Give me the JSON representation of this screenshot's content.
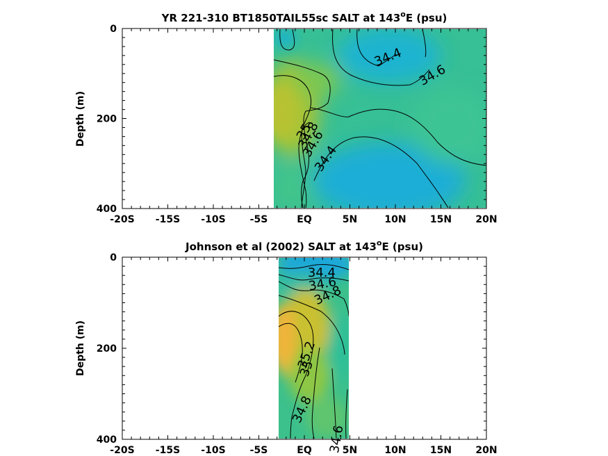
{
  "chart_data": [
    {
      "type": "heatmap",
      "title": "YR 221-310 BT1850TAIL55sc SALT at 143",
      "title_sup": "o",
      "title_suffix": "E (psu)",
      "ylabel": "Depth (m)",
      "xlabel": "",
      "xlim": [
        -20,
        20
      ],
      "ylim": [
        0,
        400
      ],
      "y_reversed": true,
      "x_ticks": [
        {
          "v": -20,
          "label": "-20S"
        },
        {
          "v": -15,
          "label": "-15S"
        },
        {
          "v": -10,
          "label": "-10S"
        },
        {
          "v": -5,
          "label": "-5S"
        },
        {
          "v": 0,
          "label": "EQ"
        },
        {
          "v": 5,
          "label": "5N"
        },
        {
          "v": 10,
          "label": "10N"
        },
        {
          "v": 15,
          "label": "15N"
        },
        {
          "v": 20,
          "label": "20N"
        }
      ],
      "y_ticks": [
        {
          "v": 0,
          "label": "0"
        },
        {
          "v": 200,
          "label": "200"
        },
        {
          "v": 400,
          "label": "400"
        }
      ],
      "data_extent": {
        "lat": [
          -3.3,
          20
        ],
        "depth": [
          0,
          400
        ]
      },
      "contour_labels": [
        {
          "text": "34.4",
          "lat": 9.2,
          "depth": 65,
          "angle": -22
        },
        {
          "text": "34.6",
          "lat": 14.1,
          "depth": 105,
          "angle": -30
        },
        {
          "text": "35",
          "lat": 0.0,
          "depth": 230,
          "angle": -60
        },
        {
          "text": "34.8",
          "lat": 0.5,
          "depth": 238,
          "angle": -62
        },
        {
          "text": "34.6",
          "lat": 1.0,
          "depth": 257,
          "angle": -60
        },
        {
          "text": "34.4",
          "lat": 2.4,
          "depth": 290,
          "angle": -55
        }
      ]
    },
    {
      "type": "heatmap",
      "title": "Johnson et al (2002) SALT at 143",
      "title_sup": "o",
      "title_suffix": "E (psu)",
      "ylabel": "Depth (m)",
      "xlabel": "",
      "xlim": [
        -20,
        20
      ],
      "ylim": [
        0,
        400
      ],
      "y_reversed": true,
      "x_ticks": [
        {
          "v": -20,
          "label": "-20S"
        },
        {
          "v": -15,
          "label": "-15S"
        },
        {
          "v": -10,
          "label": "-10S"
        },
        {
          "v": -5,
          "label": "-5S"
        },
        {
          "v": 0,
          "label": "EQ"
        },
        {
          "v": 5,
          "label": "5N"
        },
        {
          "v": 10,
          "label": "10N"
        },
        {
          "v": 15,
          "label": "15N"
        },
        {
          "v": 20,
          "label": "20N"
        }
      ],
      "y_ticks": [
        {
          "v": 0,
          "label": "0"
        },
        {
          "v": 200,
          "label": "200"
        },
        {
          "v": 400,
          "label": "400"
        }
      ],
      "data_extent": {
        "lat": [
          -2.8,
          5
        ],
        "depth": [
          0,
          400
        ]
      },
      "contour_labels": [
        {
          "text": "34.4",
          "lat": 1.9,
          "depth": 35,
          "angle": 0
        },
        {
          "text": "34.6",
          "lat": 2.0,
          "depth": 60,
          "angle": -10
        },
        {
          "text": "34.8",
          "lat": 2.6,
          "depth": 85,
          "angle": -25
        },
        {
          "text": "35.2",
          "lat": 0.3,
          "depth": 215,
          "angle": -70
        },
        {
          "text": "35",
          "lat": 0.3,
          "depth": 245,
          "angle": -70
        },
        {
          "text": "34.8",
          "lat": -0.2,
          "depth": 335,
          "angle": -65
        },
        {
          "text": "34.6",
          "lat": 3.6,
          "depth": 400,
          "angle": -80
        }
      ]
    }
  ],
  "colors": {
    "high_salt": "#f0ba34",
    "mid_high": "#a8c435",
    "mid": "#3cc08e",
    "low_salt": "#1aa6d8",
    "deep_fresh": "#1fb0c8"
  }
}
